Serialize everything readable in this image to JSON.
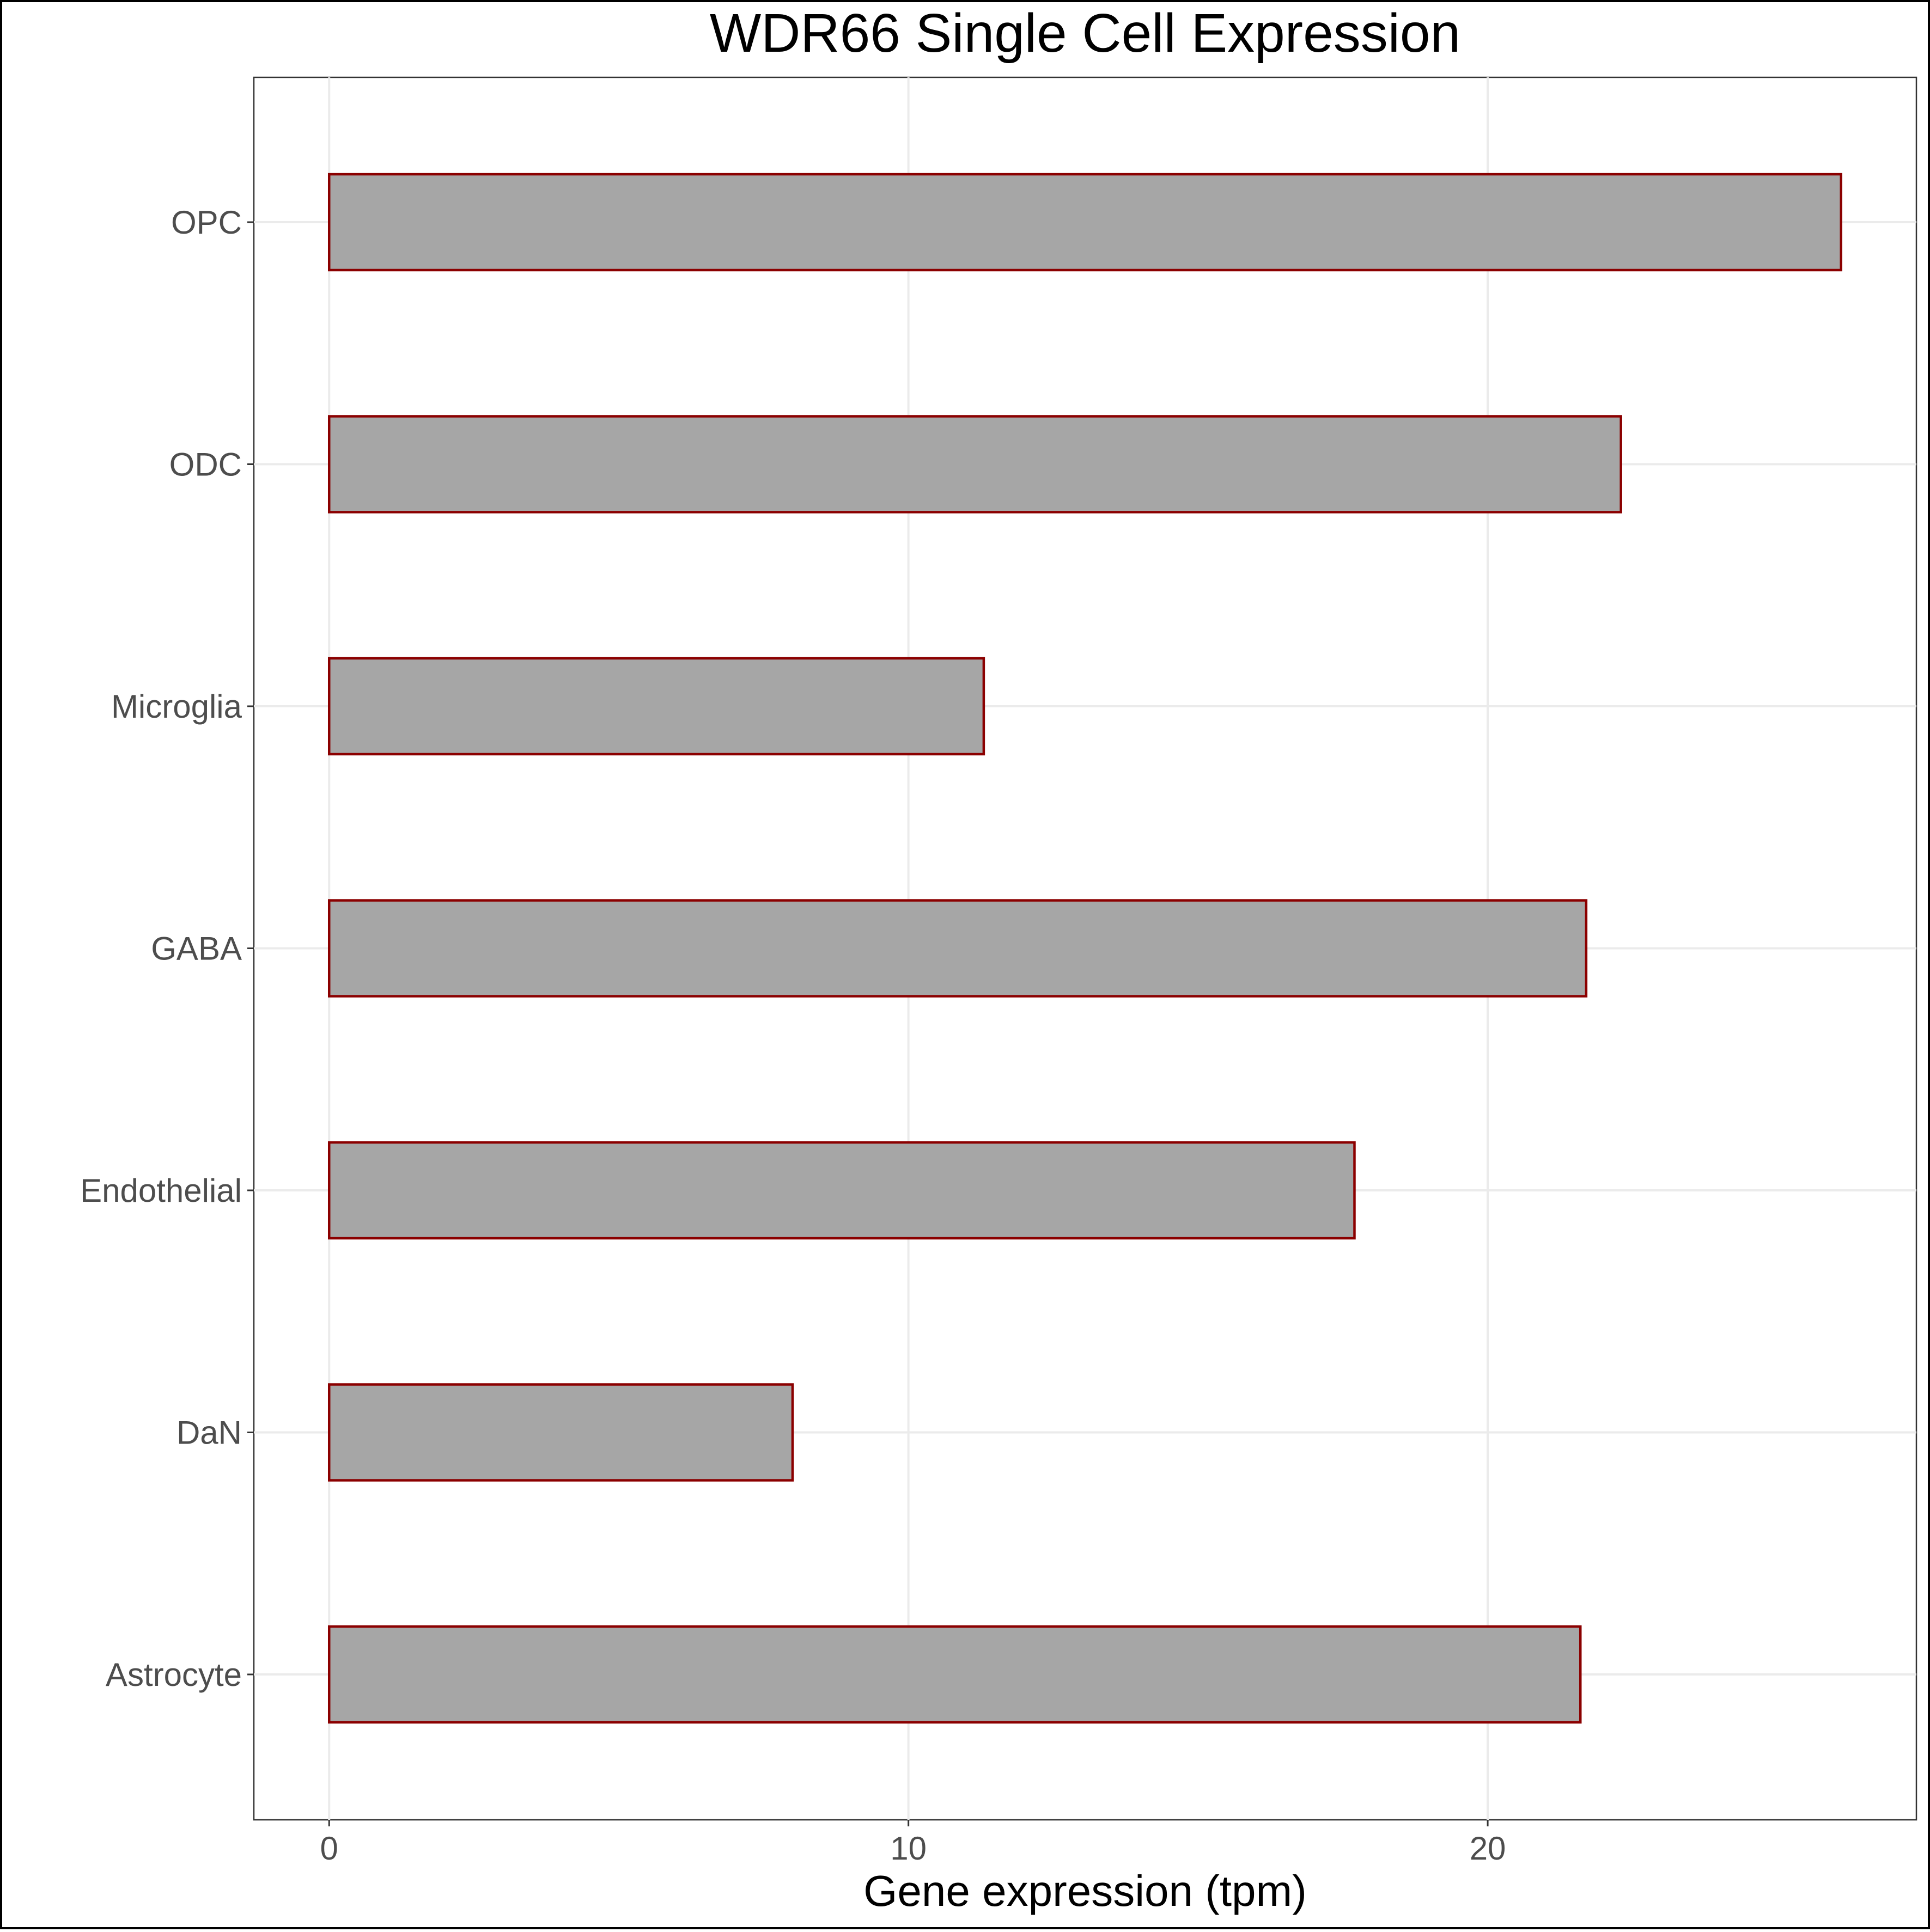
{
  "chart_data": {
    "type": "bar",
    "orientation": "horizontal",
    "title": "WDR66 Single Cell Expression",
    "xlabel": "Gene expression (tpm)",
    "ylabel": "",
    "categories": [
      "Astrocyte",
      "DaN",
      "Endothelial",
      "GABA",
      "Microglia",
      "ODC",
      "OPC"
    ],
    "values": [
      21.6,
      8.0,
      17.7,
      21.7,
      11.3,
      22.3,
      26.1
    ],
    "xlim": [
      -1.3,
      27.4
    ],
    "xticks": [
      0,
      10,
      20
    ],
    "xtick_labels": [
      "0",
      "10",
      "20"
    ],
    "grid": true,
    "legend": "none",
    "colors": {
      "bar_fill": "#a6a6a6",
      "bar_outline": "#8b0000"
    }
  }
}
